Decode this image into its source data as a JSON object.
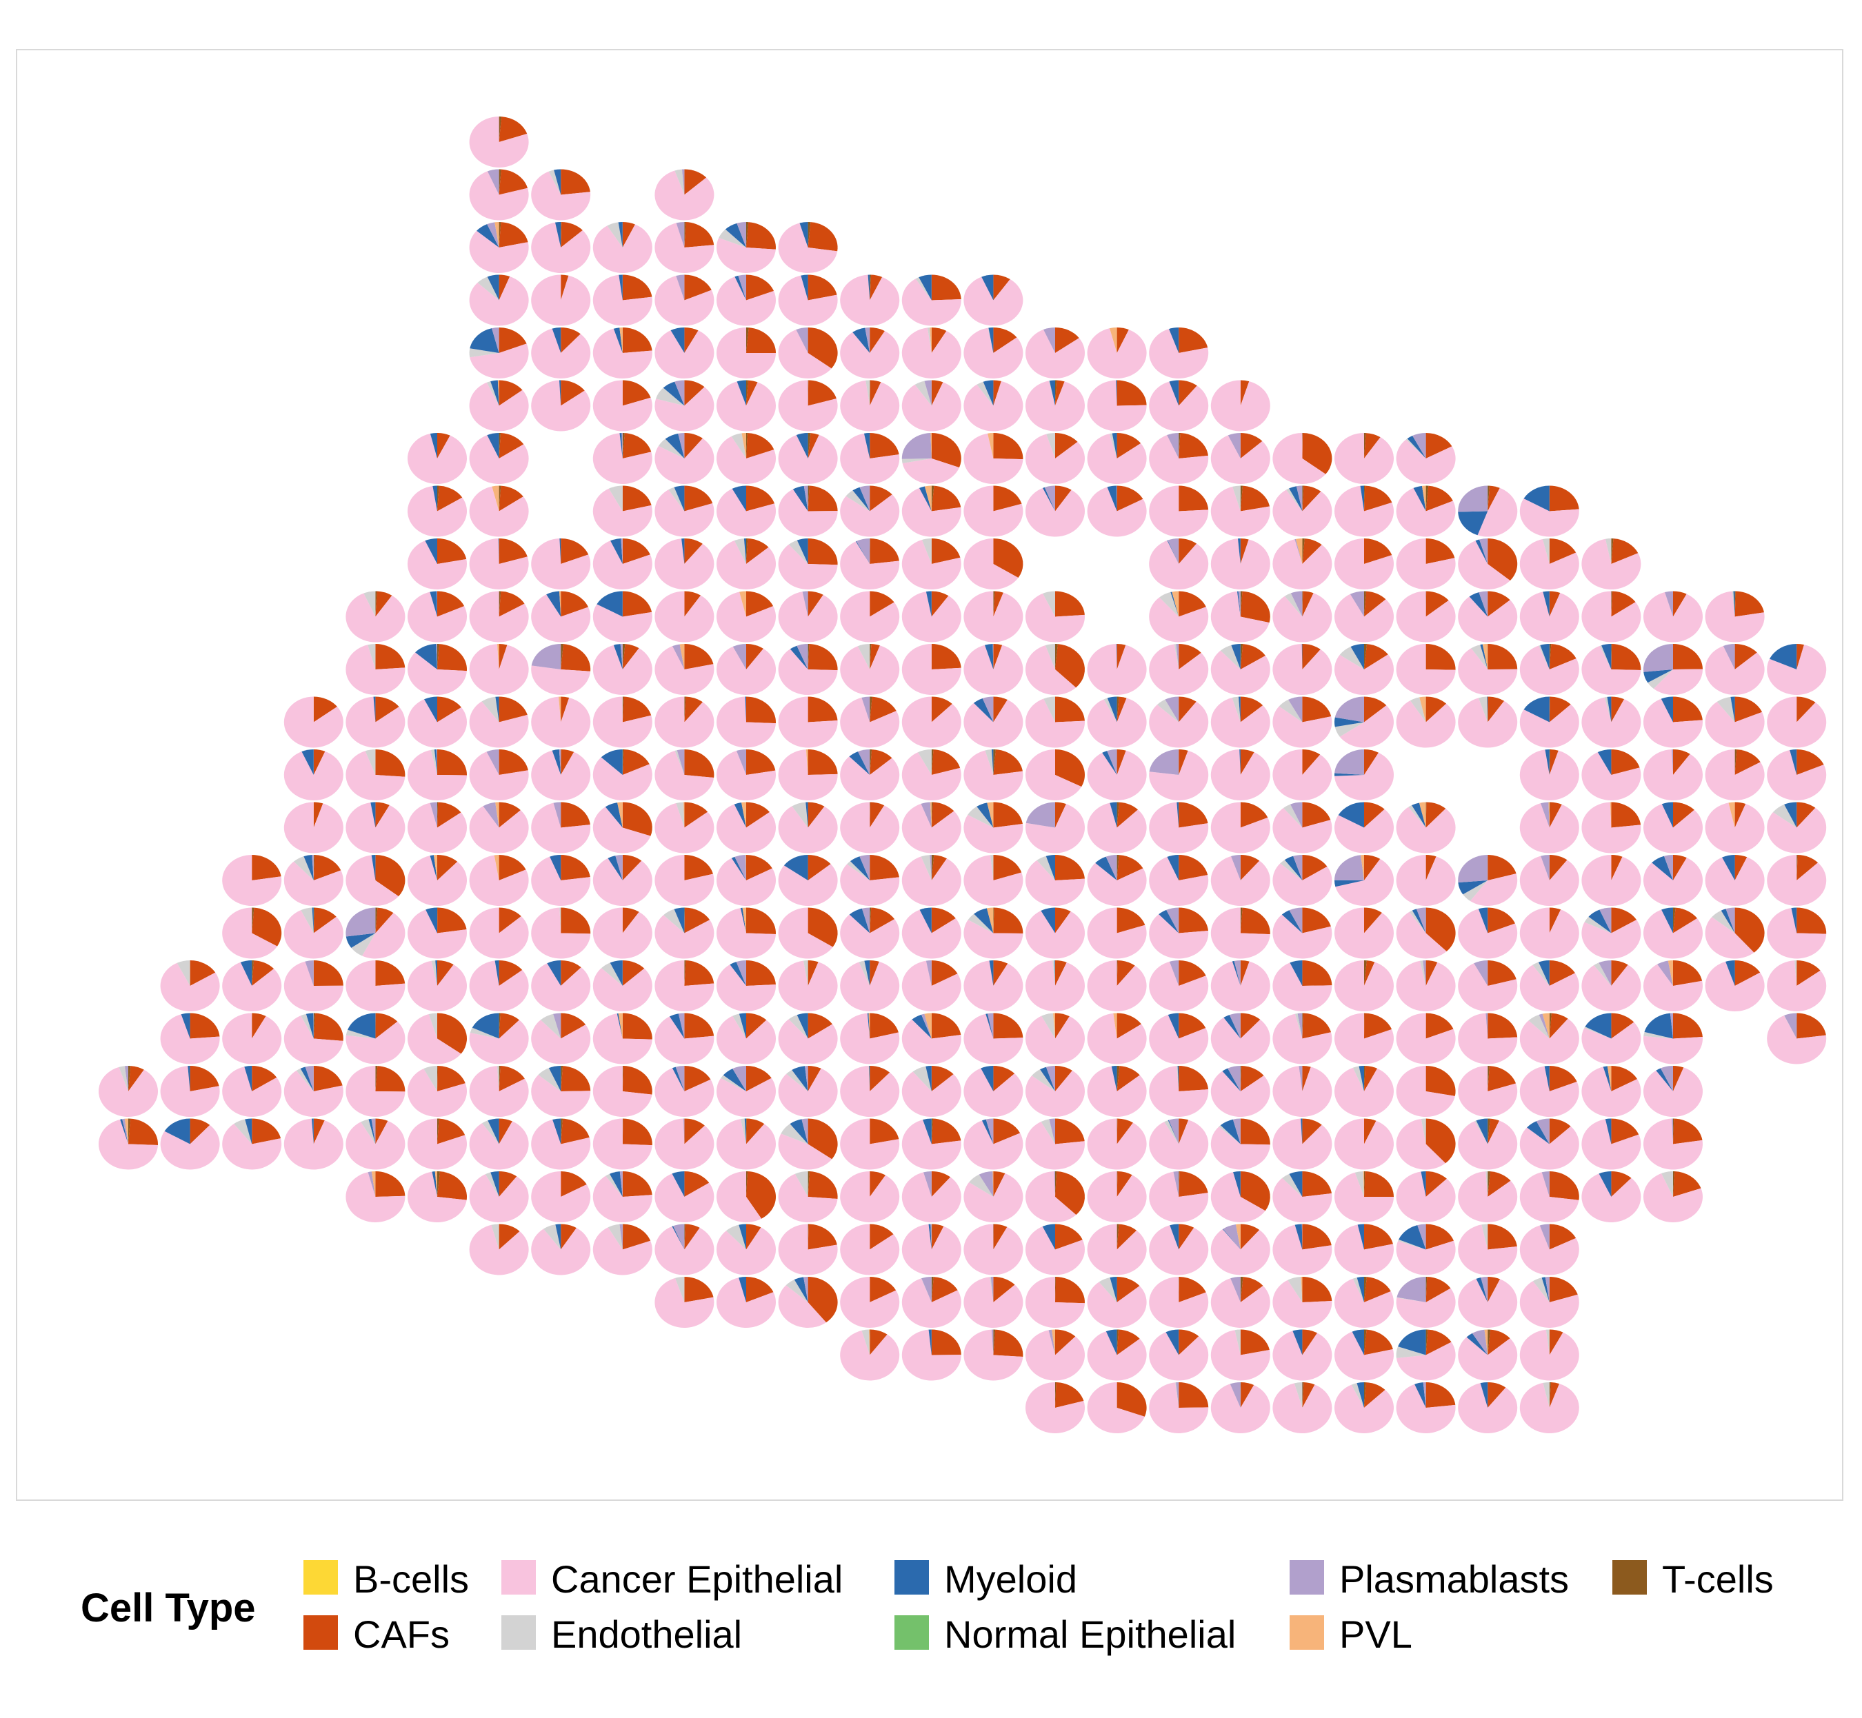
{
  "chart_data": {
    "type": "scatter",
    "subtype": "spatial scatter-pie",
    "title": "",
    "xlabel": "",
    "ylabel": "",
    "grid": false,
    "legend": {
      "title": "Cell Type",
      "placement": "bottom",
      "entries": [
        {
          "name": "B-cells",
          "color": "#FDD835"
        },
        {
          "name": "CAFs",
          "color": "#D24A0E"
        },
        {
          "name": "Cancer Epithelial",
          "color": "#F8C3DE"
        },
        {
          "name": "Endothelial",
          "color": "#D3D3D3"
        },
        {
          "name": "Myeloid",
          "color": "#2B6AAE"
        },
        {
          "name": "Normal Epithelial",
          "color": "#74C16B"
        },
        {
          "name": "Plasmablasts",
          "color": "#B1A0CC"
        },
        {
          "name": "PVL",
          "color": "#F7B47A"
        },
        {
          "name": "T-cells",
          "color": "#8C5A1E"
        }
      ]
    },
    "grid_layout": {
      "columns": 27,
      "rows": 25,
      "row_extents": [
        [
          6,
          6
        ],
        [
          6,
          7,
          9,
          9
        ],
        [
          6,
          11
        ],
        [
          6,
          14
        ],
        [
          6,
          17
        ],
        [
          6,
          18
        ],
        [
          5,
          21
        ],
        [
          5,
          23
        ],
        [
          5,
          15,
          17,
          24
        ],
        [
          4,
          26
        ],
        [
          4,
          27
        ],
        [
          3,
          27
        ],
        [
          3,
          21,
          23,
          27
        ],
        [
          3,
          27
        ],
        [
          2,
          27
        ],
        [
          2,
          27
        ],
        [
          1,
          27
        ],
        [
          1,
          25,
          27,
          27
        ],
        [
          0,
          25
        ],
        [
          0,
          25
        ],
        [
          4,
          25
        ],
        [
          6,
          23
        ],
        [
          9,
          23
        ],
        [
          12,
          23
        ],
        [
          15,
          23
        ]
      ],
      "holes": [
        [
          6,
          7
        ],
        [
          7,
          7
        ],
        [
          8,
          15
        ],
        [
          9,
          16
        ],
        [
          12,
          21
        ],
        [
          13,
          22
        ]
      ]
    },
    "composition_note": "Each spot is a pie of cell-type proportions; Cancer Epithelial dominates nearly every spot, followed by CAFs, Myeloid, Plasmablasts and Endothelial."
  }
}
